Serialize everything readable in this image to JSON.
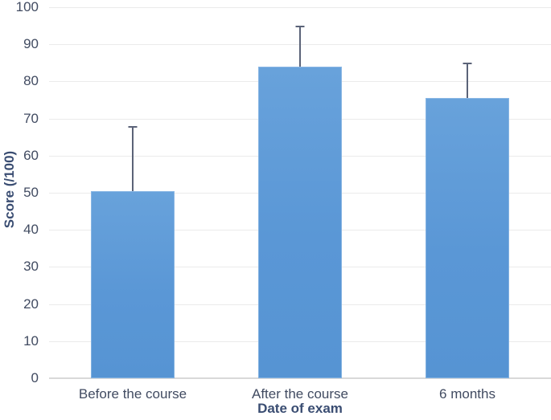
{
  "chart_data": {
    "type": "bar",
    "title": "",
    "categories": [
      "Before the course",
      "After the course",
      "6 months"
    ],
    "values": [
      50.5,
      84,
      75.5
    ],
    "error_upper": [
      17.5,
      11,
      9.5
    ],
    "xlabel": "Date of exam",
    "ylabel": "Score (/100)",
    "ylim": [
      0,
      100
    ],
    "yticks": [
      0,
      10,
      20,
      30,
      40,
      50,
      60,
      70,
      80,
      90,
      100
    ],
    "grid": "horizontal",
    "legend": "none",
    "bar_color": "#5b9ad8",
    "bar_highlight_color": "#a5c8eb",
    "error_bar_color": "#5b6378",
    "gridline_color": "#ebebeb",
    "baseline_color": "#d9d9d9",
    "tick_label_color": "#414b61",
    "axis_title_color": "#3a4d72",
    "background_color": "#ffffff"
  }
}
